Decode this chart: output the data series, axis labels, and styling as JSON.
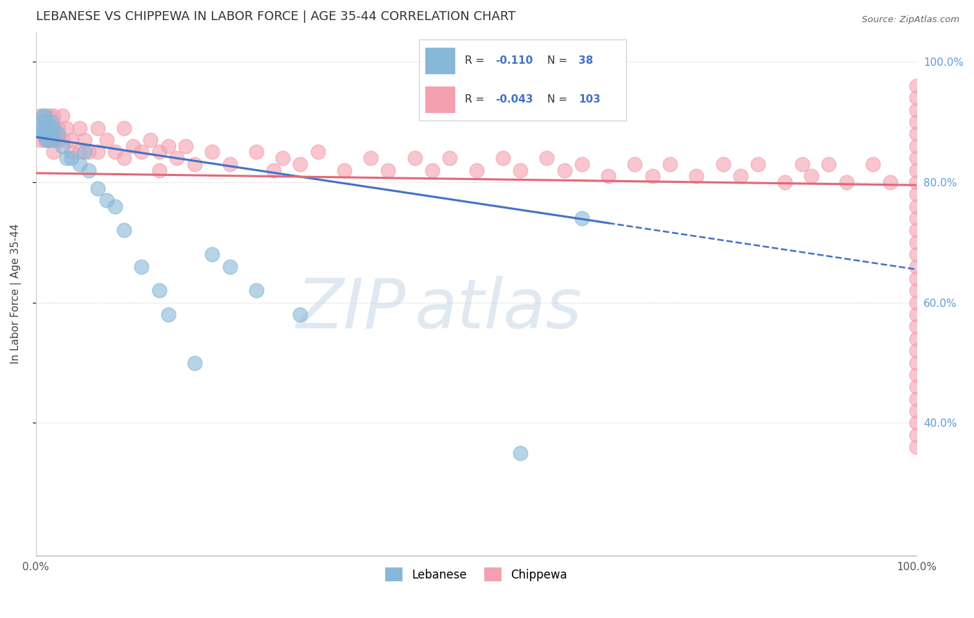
{
  "title": "LEBANESE VS CHIPPEWA IN LABOR FORCE | AGE 35-44 CORRELATION CHART",
  "source_text": "Source: ZipAtlas.com",
  "ylabel": "In Labor Force | Age 35-44",
  "xlim": [
    0.0,
    1.0
  ],
  "ylim": [
    0.18,
    1.05
  ],
  "watermark_zip": "ZIP",
  "watermark_atlas": "atlas",
  "legend_leb_R": "-0.110",
  "legend_leb_N": "38",
  "legend_chip_R": "-0.043",
  "legend_chip_N": "103",
  "lebanese_color": "#88b8d8",
  "chippewa_color": "#f4a0b0",
  "lebanese_line_color": "#4472c4",
  "chippewa_line_color": "#e06878",
  "bg_color": "#ffffff",
  "grid_color": "#cccccc",
  "title_color": "#333333",
  "right_label_color": "#5b9bd5",
  "leb_trend_x0": 0.0,
  "leb_trend_y0": 0.875,
  "leb_trend_x1": 0.65,
  "leb_trend_y1": 0.73,
  "leb_trend_x2": 1.0,
  "leb_trend_y2": 0.655,
  "chip_trend_x0": 0.0,
  "chip_trend_y0": 0.815,
  "chip_trend_x1": 1.0,
  "chip_trend_y1": 0.795,
  "lebanese_x": [
    0.005,
    0.008,
    0.008,
    0.008,
    0.01,
    0.01,
    0.01,
    0.012,
    0.012,
    0.012,
    0.015,
    0.015,
    0.015,
    0.018,
    0.018,
    0.02,
    0.02,
    0.025,
    0.03,
    0.035,
    0.04,
    0.05,
    0.055,
    0.06,
    0.07,
    0.08,
    0.09,
    0.1,
    0.12,
    0.14,
    0.15,
    0.18,
    0.2,
    0.22,
    0.25,
    0.3,
    0.55,
    0.62
  ],
  "lebanese_y": [
    0.9,
    0.91,
    0.89,
    0.88,
    0.9,
    0.91,
    0.88,
    0.9,
    0.89,
    0.87,
    0.89,
    0.88,
    0.87,
    0.9,
    0.88,
    0.87,
    0.89,
    0.88,
    0.86,
    0.84,
    0.84,
    0.83,
    0.85,
    0.82,
    0.79,
    0.77,
    0.76,
    0.72,
    0.66,
    0.62,
    0.58,
    0.5,
    0.68,
    0.66,
    0.62,
    0.58,
    0.35,
    0.74
  ],
  "chippewa_x": [
    0.005,
    0.005,
    0.008,
    0.01,
    0.01,
    0.012,
    0.015,
    0.015,
    0.018,
    0.02,
    0.02,
    0.02,
    0.025,
    0.025,
    0.03,
    0.03,
    0.035,
    0.04,
    0.04,
    0.05,
    0.05,
    0.055,
    0.06,
    0.07,
    0.07,
    0.08,
    0.09,
    0.1,
    0.1,
    0.11,
    0.12,
    0.13,
    0.14,
    0.14,
    0.15,
    0.16,
    0.17,
    0.18,
    0.2,
    0.22,
    0.25,
    0.27,
    0.28,
    0.3,
    0.32,
    0.35,
    0.38,
    0.4,
    0.43,
    0.45,
    0.47,
    0.5,
    0.53,
    0.55,
    0.58,
    0.6,
    0.62,
    0.65,
    0.68,
    0.7,
    0.72,
    0.75,
    0.78,
    0.8,
    0.82,
    0.85,
    0.87,
    0.88,
    0.9,
    0.92,
    0.95,
    0.97,
    1.0,
    1.0,
    1.0,
    1.0,
    1.0,
    1.0,
    1.0,
    1.0,
    1.0,
    1.0,
    1.0,
    1.0,
    1.0,
    1.0,
    1.0,
    1.0,
    1.0,
    1.0,
    1.0,
    1.0,
    1.0,
    1.0,
    1.0,
    1.0,
    1.0,
    1.0,
    1.0,
    1.0,
    1.0,
    1.0,
    1.0
  ],
  "chippewa_y": [
    0.91,
    0.87,
    0.89,
    0.9,
    0.87,
    0.89,
    0.91,
    0.87,
    0.89,
    0.91,
    0.87,
    0.85,
    0.89,
    0.87,
    0.91,
    0.87,
    0.89,
    0.87,
    0.85,
    0.89,
    0.85,
    0.87,
    0.85,
    0.89,
    0.85,
    0.87,
    0.85,
    0.89,
    0.84,
    0.86,
    0.85,
    0.87,
    0.85,
    0.82,
    0.86,
    0.84,
    0.86,
    0.83,
    0.85,
    0.83,
    0.85,
    0.82,
    0.84,
    0.83,
    0.85,
    0.82,
    0.84,
    0.82,
    0.84,
    0.82,
    0.84,
    0.82,
    0.84,
    0.82,
    0.84,
    0.82,
    0.83,
    0.81,
    0.83,
    0.81,
    0.83,
    0.81,
    0.83,
    0.81,
    0.83,
    0.8,
    0.83,
    0.81,
    0.83,
    0.8,
    0.83,
    0.8,
    0.96,
    0.94,
    0.92,
    0.9,
    0.88,
    0.86,
    0.84,
    0.82,
    0.8,
    0.78,
    0.76,
    0.74,
    0.72,
    0.7,
    0.68,
    0.66,
    0.64,
    0.62,
    0.6,
    0.58,
    0.56,
    0.54,
    0.52,
    0.5,
    0.48,
    0.46,
    0.44,
    0.42,
    0.4,
    0.38,
    0.36
  ]
}
